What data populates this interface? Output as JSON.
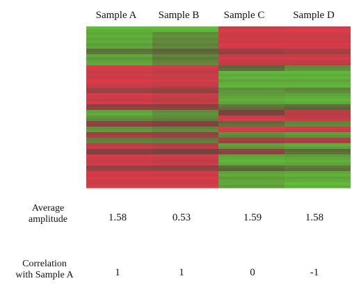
{
  "chart_data": {
    "type": "heatmap",
    "samples": [
      "Sample A",
      "Sample B",
      "Sample C",
      "Sample D"
    ],
    "row_metrics": [
      {
        "label_lines": [
          "Average",
          "amplitude"
        ],
        "values": [
          "1.58",
          "0.53",
          "1.59",
          "1.58"
        ]
      },
      {
        "label_lines": [
          "Correlation",
          "with Sample A"
        ],
        "values": [
          "1",
          "1",
          "0",
          "-1"
        ]
      }
    ],
    "color_scale": {
      "high": "#e23a4a",
      "low": "#5fbf3a"
    },
    "rows": 60,
    "bands": [
      {
        "rows": 2,
        "levels": [
          -0.9,
          -0.95,
          0.9,
          0.95
        ]
      },
      {
        "rows": 6,
        "levels": [
          -0.8,
          -0.55,
          0.85,
          0.85
        ]
      },
      {
        "rows": 2,
        "levels": [
          -0.4,
          -0.3,
          0.4,
          0.5
        ]
      },
      {
        "rows": 4,
        "levels": [
          -0.75,
          -0.5,
          0.8,
          0.8
        ]
      },
      {
        "rows": 2,
        "levels": [
          0.9,
          0.85,
          -0.3,
          -0.6
        ]
      },
      {
        "rows": 6,
        "levels": [
          0.85,
          0.8,
          -0.85,
          -0.85
        ]
      },
      {
        "rows": 2,
        "levels": [
          0.5,
          0.45,
          -0.6,
          -0.5
        ]
      },
      {
        "rows": 4,
        "levels": [
          0.85,
          0.75,
          -0.8,
          -0.85
        ]
      },
      {
        "rows": 2,
        "levels": [
          0.35,
          0.3,
          -0.4,
          -0.3
        ]
      },
      {
        "rows": 2,
        "levels": [
          -0.8,
          -0.6,
          0.2,
          0.7
        ]
      },
      {
        "rows": 2,
        "levels": [
          -0.6,
          -0.5,
          0.9,
          0.8
        ]
      },
      {
        "rows": 2,
        "levels": [
          0.4,
          0.3,
          -0.3,
          -0.5
        ]
      },
      {
        "rows": 2,
        "levels": [
          -0.7,
          -0.6,
          0.85,
          0.8
        ]
      },
      {
        "rows": 2,
        "levels": [
          0.5,
          0.4,
          -0.6,
          -0.7
        ]
      },
      {
        "rows": 2,
        "levels": [
          -0.5,
          -0.45,
          0.5,
          0.6
        ]
      },
      {
        "rows": 2,
        "levels": [
          0.8,
          0.7,
          -0.7,
          -0.8
        ]
      },
      {
        "rows": 2,
        "levels": [
          0.3,
          0.2,
          0.4,
          -0.3
        ]
      },
      {
        "rows": 4,
        "levels": [
          0.85,
          0.8,
          -0.85,
          -0.8
        ]
      },
      {
        "rows": 2,
        "levels": [
          0.4,
          0.35,
          -0.3,
          -0.4
        ]
      },
      {
        "rows": 4,
        "levels": [
          0.85,
          0.85,
          -0.8,
          -0.85
        ]
      },
      {
        "rows": 2,
        "levels": [
          0.9,
          0.9,
          -0.75,
          -0.9
        ]
      }
    ]
  }
}
